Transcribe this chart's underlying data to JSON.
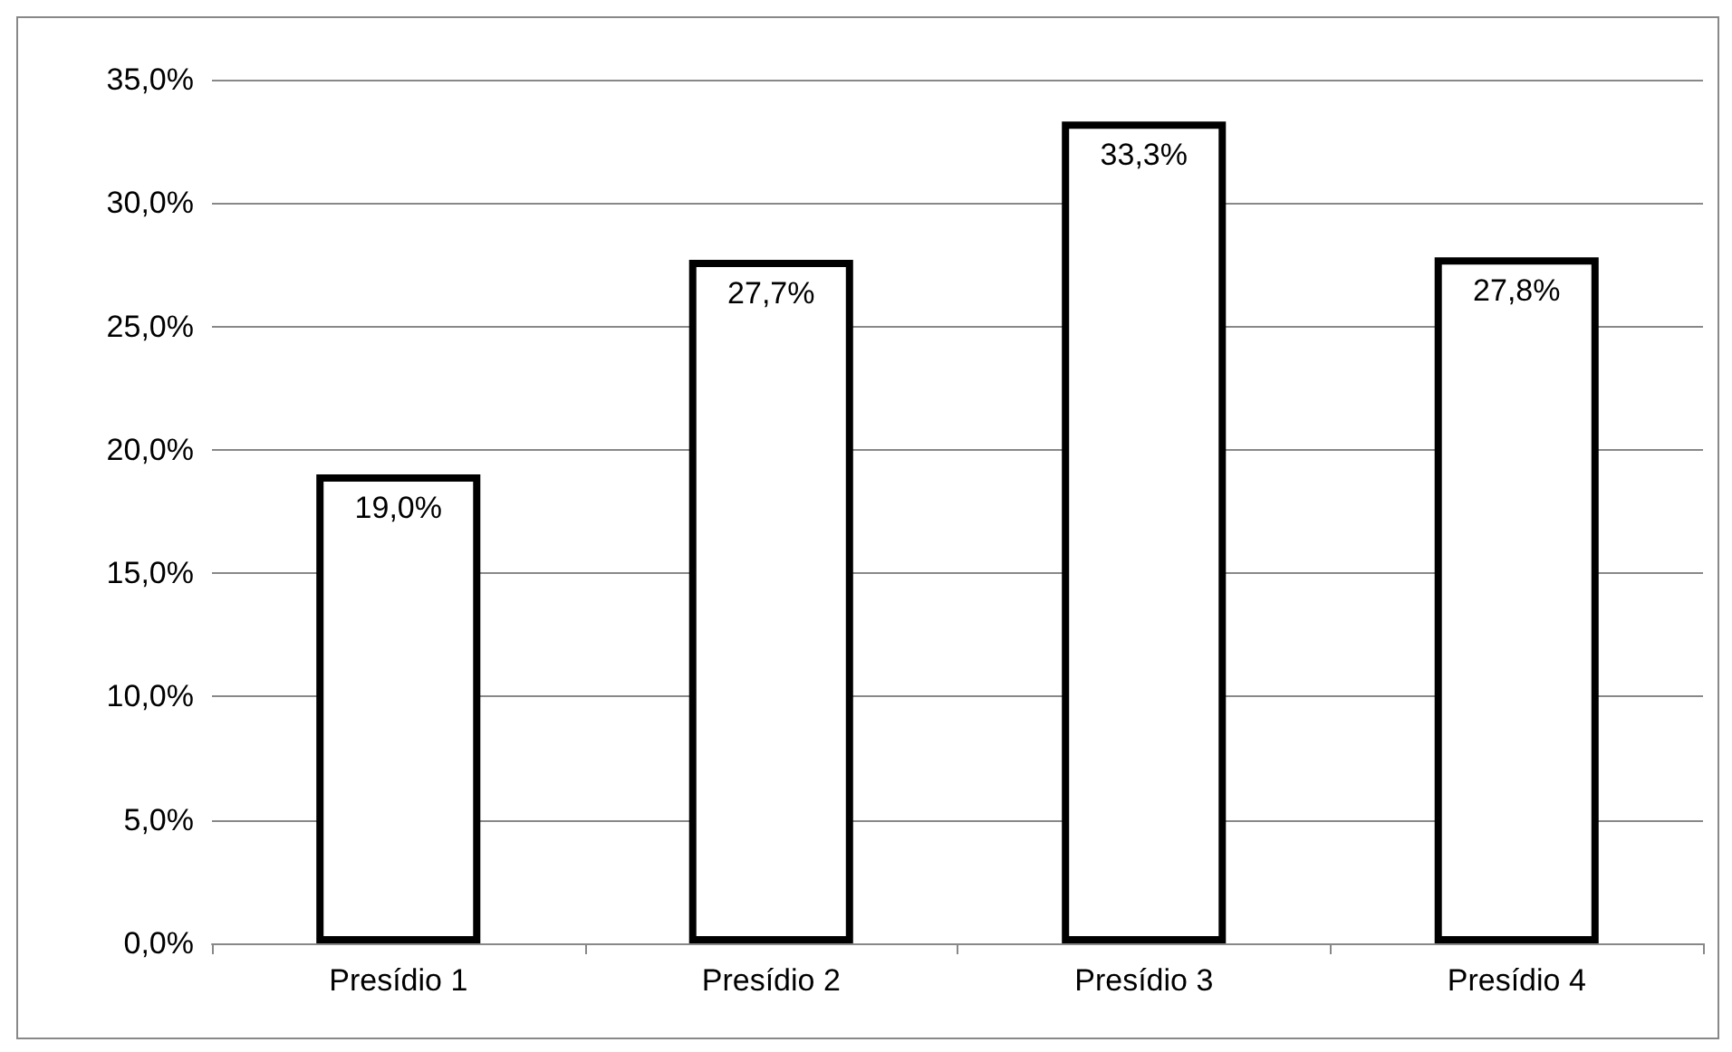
{
  "chart_data": {
    "type": "bar",
    "categories": [
      "Presídio 1",
      "Presídio 2",
      "Presídio 3",
      "Presídio 4"
    ],
    "values": [
      19.0,
      27.7,
      33.3,
      27.8
    ],
    "color": "#ffffff",
    "value_labels": [
      "19,0%",
      "27,7%",
      "33,3%",
      "27,8%"
    ],
    "ylim": [
      0,
      35
    ],
    "yticks": [
      {
        "value": 0,
        "label": "0,0%"
      },
      {
        "value": 5,
        "label": "5,0%"
      },
      {
        "value": 10,
        "label": "10,0%"
      },
      {
        "value": 15,
        "label": "15,0%"
      },
      {
        "value": 20,
        "label": "20,0%"
      },
      {
        "value": 25,
        "label": "25,0%"
      },
      {
        "value": 30,
        "label": "30,0%"
      },
      {
        "value": 35,
        "label": "35,0%"
      }
    ],
    "grid": "y"
  }
}
